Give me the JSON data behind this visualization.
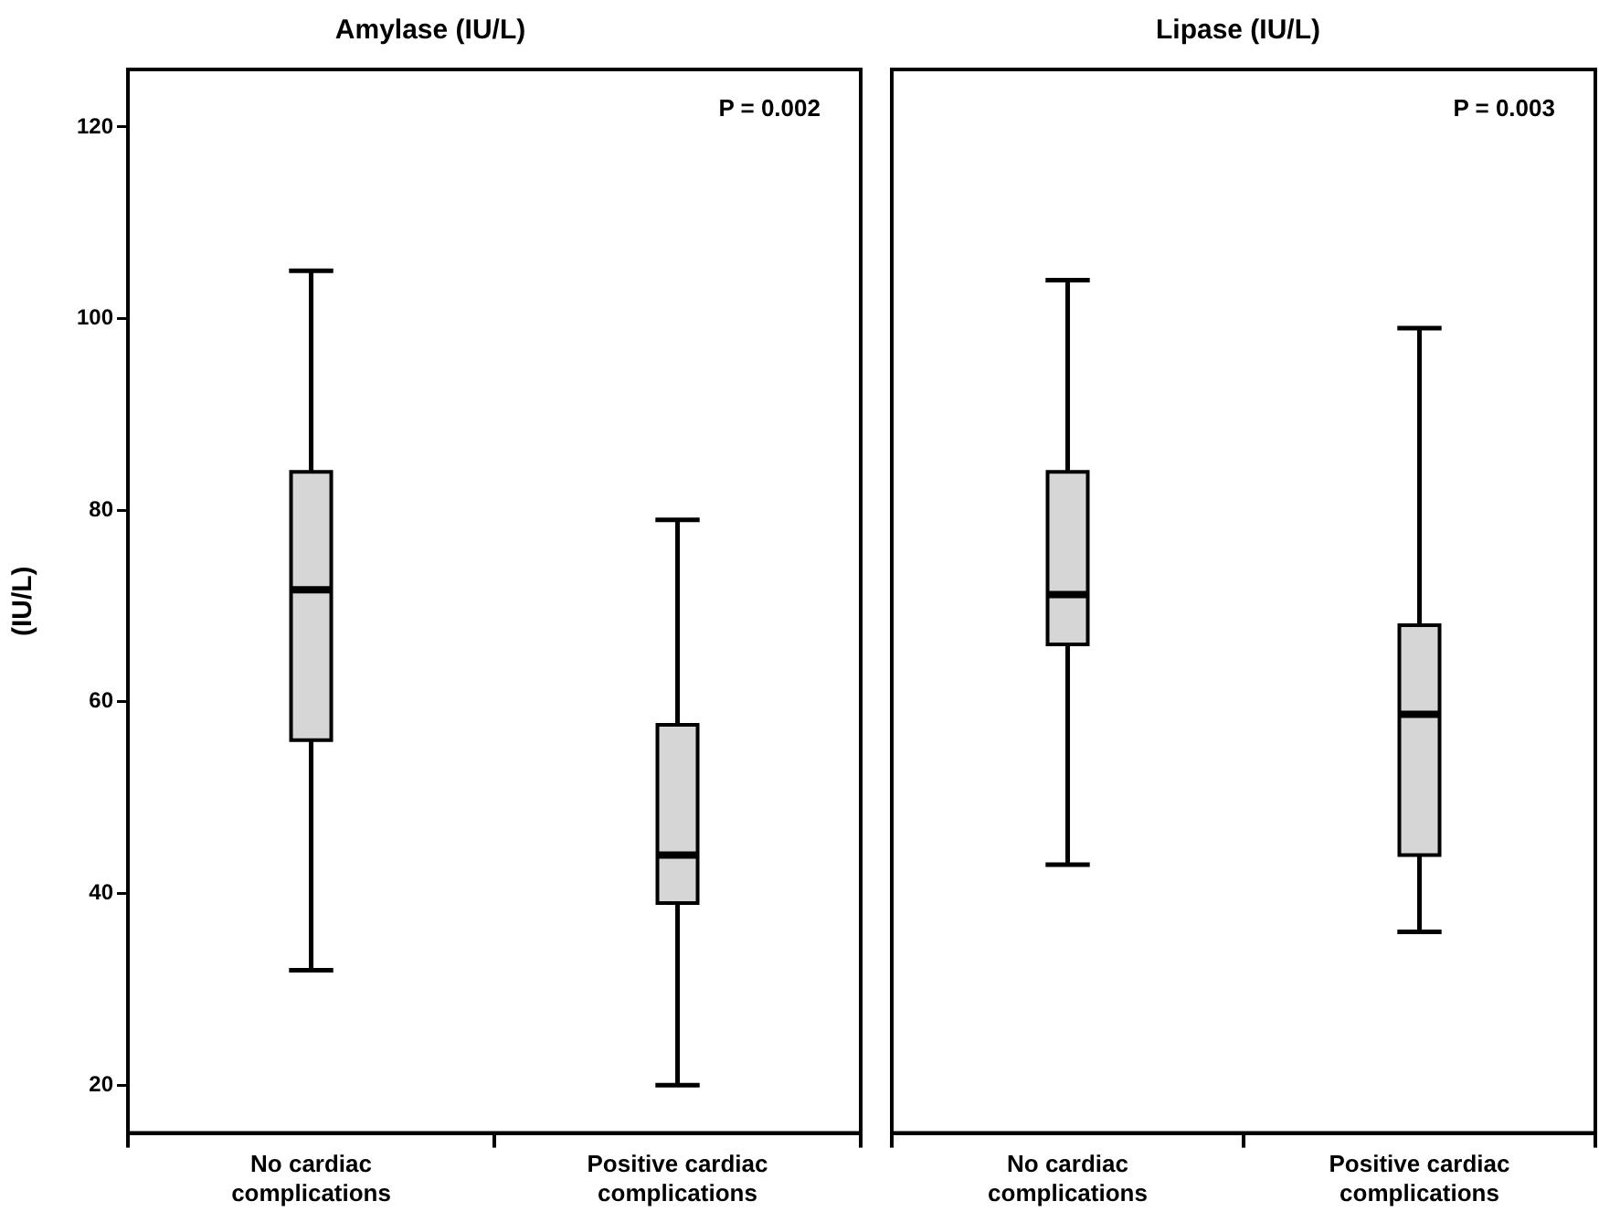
{
  "chart_data": [
    {
      "type": "box",
      "title": "Amylase (IU/L)",
      "ylabel": "(IU/L)",
      "categories": [
        "No cardiac complications",
        "Positive cardiac complications"
      ],
      "series": [
        {
          "color": "#d6d6d6",
          "boxes": [
            {
              "low": 32,
              "q1": 56,
              "median": 71.7,
              "q3": 84,
              "high": 105
            },
            {
              "low": 20,
              "q1": 39,
              "median": 44,
              "q3": 57.6,
              "high": 79
            }
          ]
        }
      ],
      "ylim": [
        15,
        126
      ],
      "yticks": [
        20,
        40,
        60,
        80,
        100,
        120
      ],
      "annotations": [
        "P = 0.002"
      ]
    },
    {
      "type": "box",
      "title": "Lipase (IU/L)",
      "categories": [
        "No cardiac complications",
        "Positive cardiac complications"
      ],
      "series": [
        {
          "color": "#d6d6d6",
          "boxes": [
            {
              "low": 43,
              "q1": 66,
              "median": 71.2,
              "q3": 84,
              "high": 104
            },
            {
              "low": 36,
              "q1": 44,
              "median": 58.7,
              "q3": 68,
              "high": 99
            }
          ]
        }
      ],
      "ylim": [
        15,
        126
      ],
      "yticks": [
        20,
        40,
        60,
        80,
        100,
        120
      ],
      "tick_labels": "x",
      "annotations": [
        "P = 0.003"
      ]
    }
  ]
}
